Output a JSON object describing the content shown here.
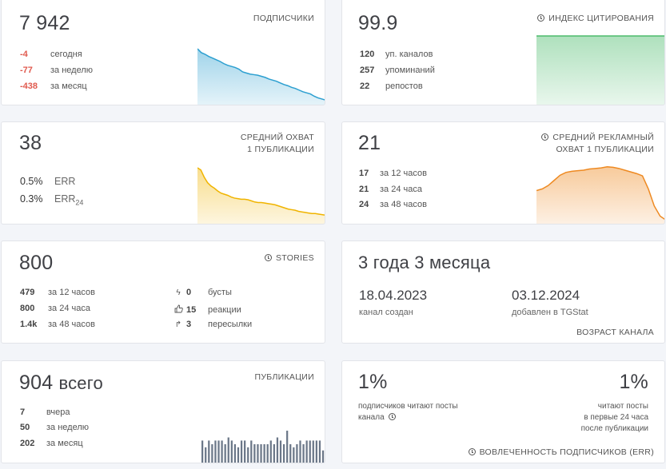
{
  "subscribers": {
    "value": "7 942",
    "caption": "ПОДПИСЧИКИ",
    "rows": [
      {
        "num": "-4",
        "label": "сегодня"
      },
      {
        "num": "-77",
        "label": "за неделю"
      },
      {
        "num": "-438",
        "label": "за месяц"
      }
    ],
    "color": "#2c9fd0"
  },
  "citation": {
    "value": "99.9",
    "caption": "ИНДЕКС ЦИТИРОВАНИЯ",
    "rows": [
      {
        "num": "120",
        "label": "уп. каналов"
      },
      {
        "num": "257",
        "label": "упоминаний"
      },
      {
        "num": "22",
        "label": "репостов"
      }
    ],
    "color": "#4cbb6c"
  },
  "avg_reach": {
    "value": "38",
    "caption_1": "СРЕДНИЙ ОХВАТ",
    "caption_2": "1 ПУБЛИКАЦИИ",
    "err_value": "0.5%",
    "err_label": "ERR",
    "err24_value": "0.3%",
    "err24_label": "ERR",
    "err24_sub": "24",
    "color": "#f0b400"
  },
  "ad_reach": {
    "value": "21",
    "caption_1": "СРЕДНИЙ РЕКЛАМНЫЙ",
    "caption_2": "ОХВАТ 1 ПУБЛИКАЦИИ",
    "rows": [
      {
        "num": "17",
        "label": "за 12 часов"
      },
      {
        "num": "21",
        "label": "за 24 часа"
      },
      {
        "num": "24",
        "label": "за 48 часов"
      }
    ],
    "color": "#ee8a22"
  },
  "stories": {
    "value": "800",
    "caption": "STORIES",
    "rows": [
      {
        "num": "479",
        "label": "за 12 часов"
      },
      {
        "num": "800",
        "label": "за 24 часа"
      },
      {
        "num": "1.4k",
        "label": "за 48 часов"
      }
    ],
    "rows2": [
      {
        "icon": "lightning-icon",
        "num": "0",
        "label": "бусты"
      },
      {
        "icon": "thumbs-up-icon",
        "num": "15",
        "label": "реакции"
      },
      {
        "icon": "share-arrow-icon",
        "num": "3",
        "label": "пересылки"
      }
    ]
  },
  "age": {
    "value": "3 года 3 месяца",
    "created_date": "18.04.2023",
    "created_label": "канал создан",
    "added_date": "03.12.2024",
    "added_label": "добавлен в TGStat",
    "caption": "ВОЗРАСТ КАНАЛА"
  },
  "publications": {
    "value": "904",
    "value_suffix": "всего",
    "caption": "ПУБЛИКАЦИИ",
    "rows": [
      {
        "num": "7",
        "label": "вчера"
      },
      {
        "num": "50",
        "label": "за неделю"
      },
      {
        "num": "202",
        "label": "за месяц"
      }
    ],
    "color": "#6b7788"
  },
  "engagement": {
    "left_value": "1%",
    "left_text_1": "подписчиков читают посты",
    "left_text_2": "канала",
    "right_value": "1%",
    "right_text_1": "читают посты",
    "right_text_2": "в первые 24 часа",
    "right_text_3": "после публикации",
    "caption": "ВОВЛЕЧЕННОСТЬ ПОДПИСЧИКОВ (ERR)"
  },
  "chart_data": [
    {
      "type": "area",
      "series": [
        {
          "values": [
            100,
            93,
            90,
            86,
            83,
            80,
            77,
            73,
            70,
            68,
            66,
            63,
            58,
            56,
            54,
            53,
            52,
            50,
            48,
            45,
            43,
            41,
            38,
            35,
            33,
            30,
            28,
            25,
            22,
            20,
            18,
            14,
            11,
            9,
            7
          ]
        }
      ]
    },
    {
      "type": "area",
      "series": [
        {
          "values": [
            100,
            100,
            100,
            100,
            100,
            100,
            100,
            100,
            100,
            100,
            100,
            100,
            100,
            100,
            100,
            100,
            100,
            100,
            100,
            100
          ]
        }
      ]
    },
    {
      "type": "area",
      "series": [
        {
          "values": [
            100,
            96,
            83,
            73,
            67,
            63,
            58,
            54,
            52,
            50,
            47,
            45,
            44,
            43,
            43,
            42,
            40,
            38,
            37,
            37,
            36,
            35,
            34,
            33,
            31,
            29,
            27,
            25,
            24,
            23,
            21,
            20,
            19,
            18,
            17,
            17,
            16,
            15,
            14
          ]
        }
      ]
    },
    {
      "type": "area",
      "series": [
        {
          "values": [
            57,
            60,
            66,
            75,
            84,
            89,
            91,
            92,
            93,
            95,
            96,
            97,
            99,
            98,
            96,
            93,
            90,
            87,
            83,
            60,
            30,
            12,
            5
          ]
        }
      ]
    },
    {
      "type": "bar",
      "series": [
        {
          "values": [
            44,
            31,
            44,
            37,
            44,
            44,
            44,
            37,
            50,
            44,
            37,
            31,
            44,
            44,
            31,
            44,
            37,
            37,
            37,
            37,
            37,
            44,
            37,
            50,
            44,
            37,
            63,
            37,
            31,
            37,
            44,
            37,
            44,
            44,
            44,
            44,
            44,
            25
          ]
        }
      ]
    }
  ]
}
